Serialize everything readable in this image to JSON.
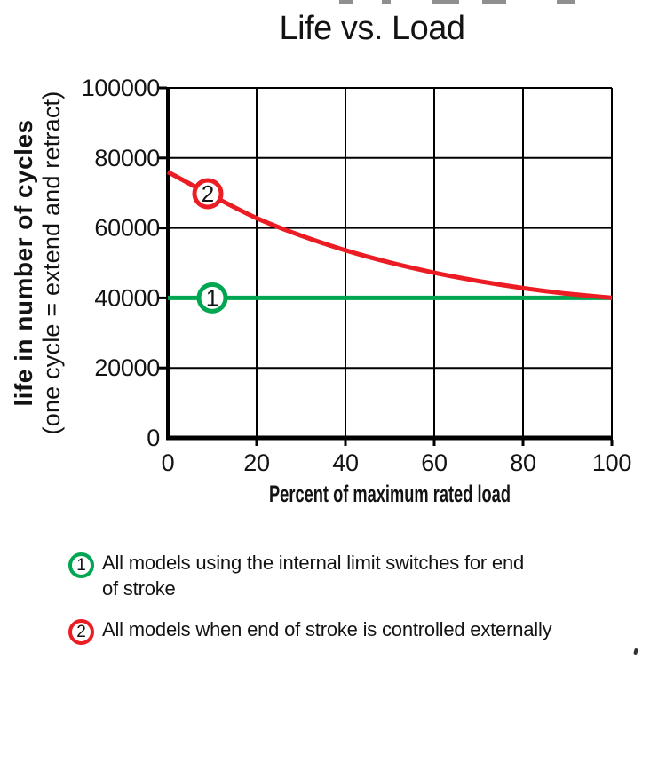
{
  "title": "Life vs. Load",
  "chart_data": {
    "type": "line",
    "title": "Life vs. Load",
    "xlabel": "Percent of maximum rated load",
    "ylabel": {
      "line1": "life in number of cycles",
      "line2": "(one cycle = extend and retract)"
    },
    "xlim": [
      0,
      100
    ],
    "ylim": [
      0,
      100000
    ],
    "x_tick_labels": [
      "0",
      "20",
      "40",
      "60",
      "80",
      "100"
    ],
    "y_tick_labels": [
      "0",
      "20000",
      "40000",
      "60000",
      "80000",
      "100000"
    ],
    "grid": true,
    "grid_color": "#000000",
    "axis_color": "#000000",
    "legend_position": "below",
    "series": [
      {
        "id": "1",
        "color": "#00A651",
        "x": [
          0,
          100
        ],
        "y": [
          40000,
          40000
        ],
        "callout": {
          "x": 10,
          "y": 40000,
          "label": "1"
        }
      },
      {
        "id": "2",
        "color": "#EC1C24",
        "x": [
          0,
          10,
          20,
          30,
          40,
          50,
          60,
          70,
          80,
          90,
          100
        ],
        "y": [
          76000,
          69200,
          62800,
          57800,
          53600,
          50100,
          47200,
          44800,
          42800,
          41200,
          40000
        ],
        "callout": {
          "x": 9,
          "y": 69800,
          "label": "2"
        }
      }
    ]
  },
  "legend": {
    "items": [
      {
        "num": "1",
        "color": "#00A651",
        "text": [
          "All models using the internal limit switches for end",
          "of stroke"
        ]
      },
      {
        "num": "2",
        "color": "#EC1C24",
        "text": [
          "All models when end of stroke is controlled externally"
        ]
      }
    ]
  }
}
